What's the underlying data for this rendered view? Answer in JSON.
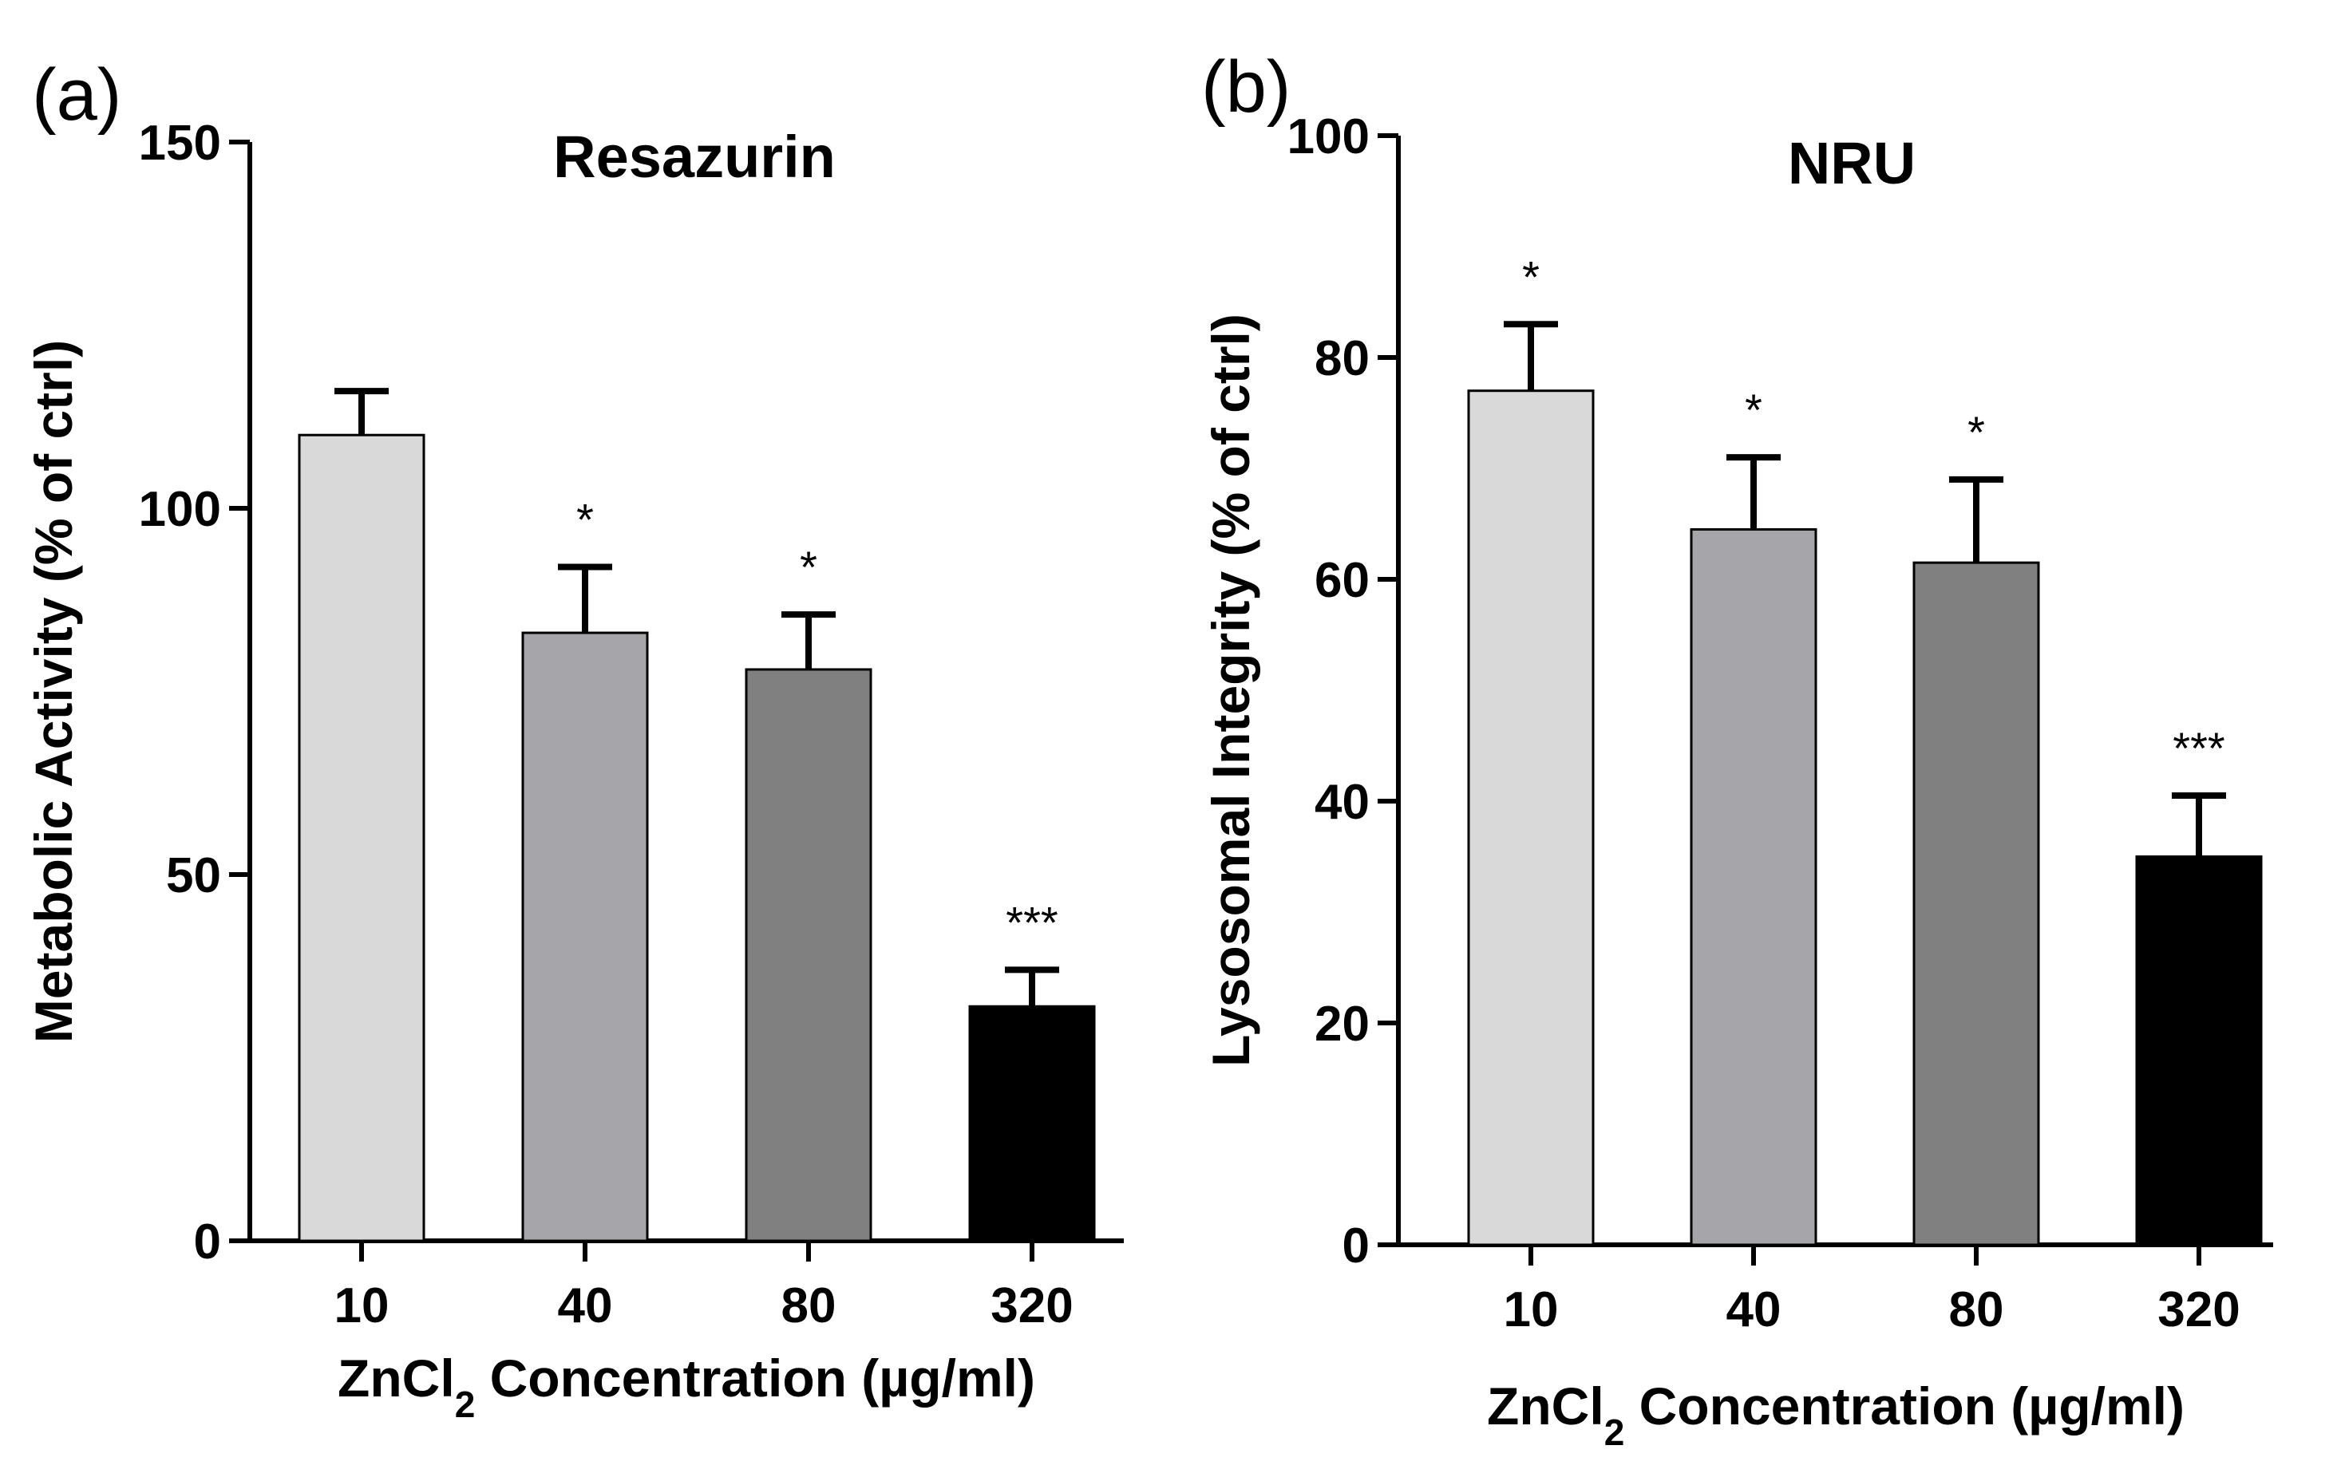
{
  "chart_data": [
    {
      "type": "bar",
      "panel_label": "(a)",
      "title": "Resazurin",
      "categories": [
        "10",
        "40",
        "80",
        "320"
      ],
      "values": [
        110,
        83,
        78,
        32
      ],
      "errors": [
        6,
        9,
        7.5,
        5
      ],
      "significance": [
        "",
        "*",
        "*",
        "***"
      ],
      "bar_colors": [
        "#d9d9d9",
        "#a6a6aa",
        "#808080",
        "#000000"
      ],
      "xlabel": "ZnCl",
      "xlabel_subscript": "2",
      "xlabel_suffix": " Concentration (µg/ml)",
      "ylabel": "Metabolic Activity (%  of ctrl)",
      "ylim": [
        0,
        150
      ],
      "yticks": [
        "0",
        "50",
        "100",
        "150"
      ]
    },
    {
      "type": "bar",
      "panel_label": "(b)",
      "title": "NRU",
      "categories": [
        "10",
        "40",
        "80",
        "320"
      ],
      "values": [
        77,
        64.5,
        61.5,
        35
      ],
      "errors": [
        6,
        6.5,
        7.5,
        5.5
      ],
      "significance": [
        "*",
        "*",
        "*",
        "***"
      ],
      "bar_colors": [
        "#d9d9d9",
        "#a6a6aa",
        "#808080",
        "#000000"
      ],
      "xlabel": "ZnCl",
      "xlabel_subscript": "2",
      "xlabel_suffix": " Concentration (µg/ml)",
      "ylabel": "Lysosomal Integrity (%  of ctrl)",
      "ylim": [
        0,
        100
      ],
      "yticks": [
        "0",
        "20",
        "40",
        "60",
        "80",
        "100"
      ]
    }
  ]
}
